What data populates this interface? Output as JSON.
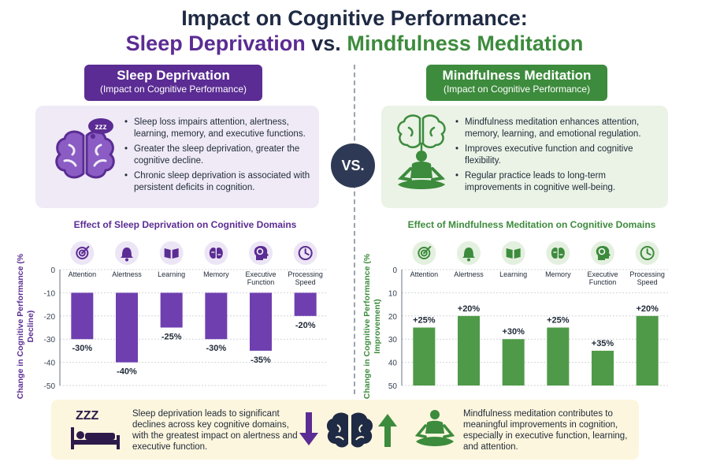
{
  "title": {
    "line1": "Impact on Cognitive Performance:",
    "line2_left": "Sleep Deprivation",
    "line2_vs": "vs.",
    "line2_right": "Mindfulness Meditation"
  },
  "vs_badge": "VS.",
  "left_panel": {
    "tag_main": "Sleep Deprivation",
    "tag_sub": "(Impact on Cognitive Performance)",
    "bullets": [
      "Sleep loss impairs attention, alertness, learning, memory, and executive functions.",
      "Greater the sleep deprivation, greater the cognitive decline.",
      "Chronic sleep deprivation is associated with persistent deficits in cognition."
    ],
    "zzz": "zzz"
  },
  "right_panel": {
    "tag_main": "Mindfulness Meditation",
    "tag_sub": "(Impact on Cognitive Performance)",
    "bullets": [
      "Mindfulness meditation enhances attention, memory, learning, and emotional regulation.",
      "Improves executive function and cognitive flexibility.",
      "Regular practice leads to long-term improvements in cognitive well-being."
    ]
  },
  "summary": {
    "left_text": "Sleep deprivation leads to significant declines across key cognitive domains, with the greatest impact on alertness and executive function.",
    "right_text": "Mindfulness meditation contributes to meaningful improvements in cognition, especially in executive function, learning, and attention.",
    "zzz": "ZZZ"
  },
  "colors": {
    "sleep": "#6f3fb0",
    "mindfulness": "#4f9a48",
    "sleep_dark": "#5b2c93",
    "mind_dark": "#3d8b3d"
  },
  "chart_data": [
    {
      "type": "bar",
      "title": "Effect of Sleep Deprivation on Cognitive Domains",
      "ylabel": "Change in Cognitive Performance (% Decline)",
      "categories": [
        "Attention",
        "Alertness",
        "Learning",
        "Memory",
        "Executive Function",
        "Processing Speed"
      ],
      "icons": [
        "target-icon",
        "bell-icon",
        "book-icon",
        "brain-icon",
        "head-gear-icon",
        "clock-icon"
      ],
      "values": [
        -30,
        -40,
        -25,
        -30,
        -35,
        -20
      ],
      "labels": [
        "-30%",
        "-40%",
        "-25%",
        "-30%",
        "-35%",
        "-20%"
      ],
      "yticks": [
        "0",
        "-10",
        "-20",
        "-30",
        "-40",
        "-50"
      ],
      "ylim": [
        -50,
        0
      ],
      "grid": true
    },
    {
      "type": "bar",
      "title": "Effect of Mindfulness Meditation on Cognitive Domains",
      "ylabel": "Change in Cognitive Performance (% Improvement)",
      "categories": [
        "Attention",
        "Alertness",
        "Learning",
        "Memory",
        "Executive Function",
        "Processing Speed"
      ],
      "icons": [
        "target-icon",
        "bell-icon",
        "book-icon",
        "brain-icon",
        "head-gear-icon",
        "clock-icon"
      ],
      "values": [
        25,
        20,
        30,
        25,
        35,
        20
      ],
      "labels": [
        "+25%",
        "+20%",
        "+30%",
        "+25%",
        "+35%",
        "+20%"
      ],
      "yticks": [
        "0",
        "10",
        "20",
        "30",
        "40",
        "50"
      ],
      "ylim": [
        0,
        50
      ],
      "grid": true
    }
  ]
}
